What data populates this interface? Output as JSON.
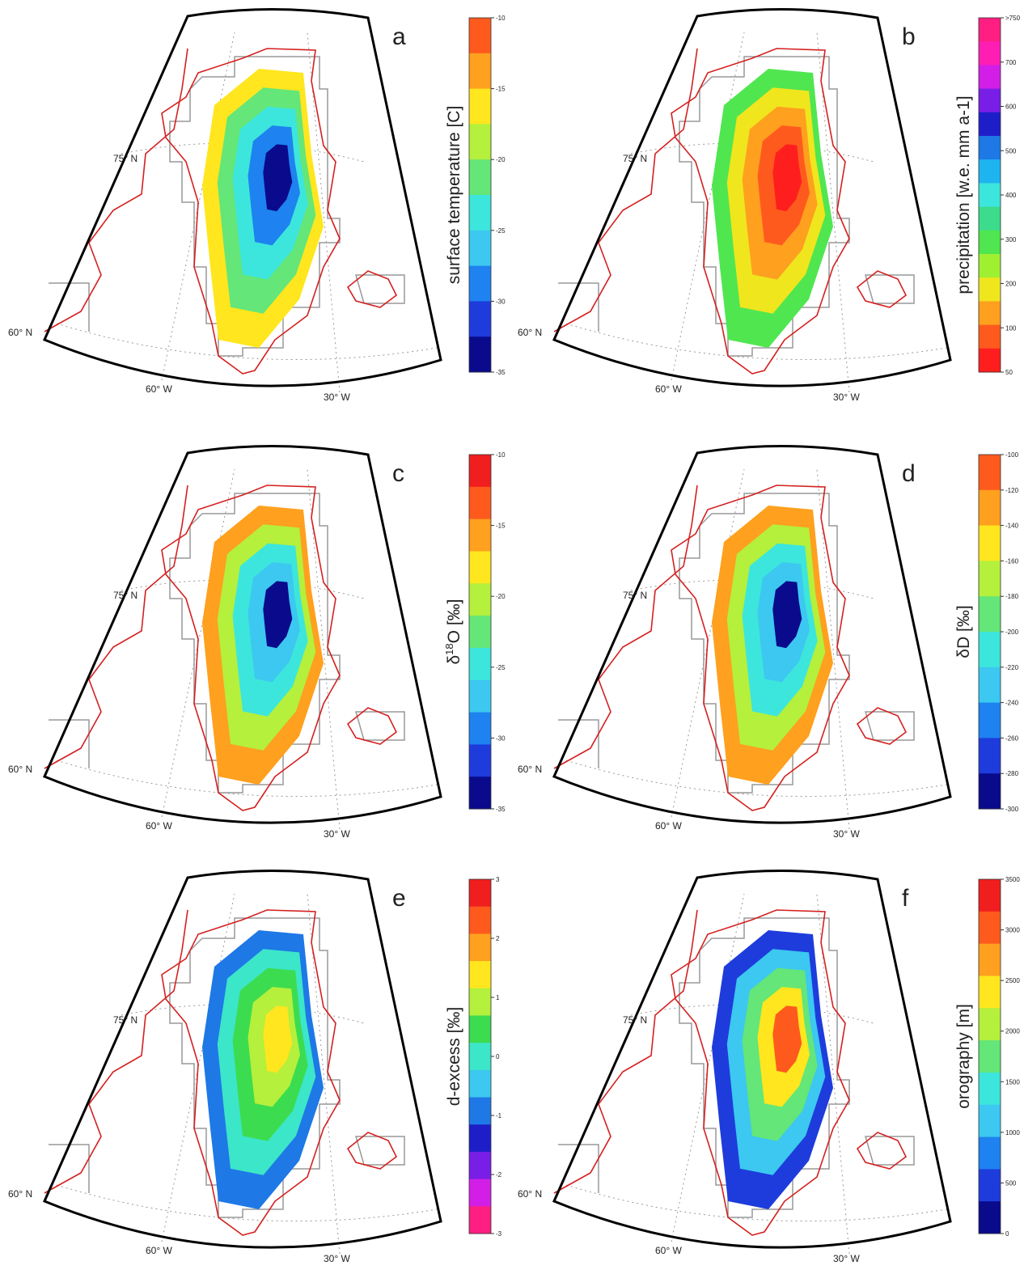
{
  "panels": [
    {
      "letter": "a",
      "colorbar_label": [
        "surface temperature [C]"
      ],
      "ticks": [
        "-10",
        "-15",
        "-20",
        "-25",
        "-30",
        "-35"
      ],
      "colors": [
        "#ff5a1e",
        "#ffa01e",
        "#ffe61e",
        "#b4f03c",
        "#64e678",
        "#3ce6dc",
        "#3cc8f0",
        "#1e82f0",
        "#1e3cdc",
        "#0a0a8c"
      ],
      "lat_labels": [
        "75° N",
        "60° N"
      ],
      "lon_labels": [
        "60° W",
        "30° W"
      ]
    },
    {
      "letter": "b",
      "colorbar_label": [
        "precipitation  [w.e. mm  a-1]"
      ],
      "ticks": [
        ">750",
        "700",
        "600",
        "500",
        "400",
        "300",
        "200",
        "100",
        "50"
      ],
      "colors": [
        "#ff1e82",
        "#ff1eb4",
        "#d21ee6",
        "#781ee6",
        "#1e1ec8",
        "#1e78e6",
        "#1eb4f0",
        "#3ce6dc",
        "#3cdc8c",
        "#50e650",
        "#a0f032",
        "#f0e61e",
        "#ffa01e",
        "#ff5a1e",
        "#ff1e1e"
      ],
      "lat_labels": [
        "75° N",
        "60° N"
      ],
      "lon_labels": [
        "60° W",
        "30° W"
      ]
    },
    {
      "letter": "c",
      "colorbar_label": [
        "δ",
        "18",
        "O [‰]"
      ],
      "ticks": [
        "-10",
        "-15",
        "-20",
        "-25",
        "-30",
        "-35"
      ],
      "colors": [
        "#f01e1e",
        "#ff5a1e",
        "#ffa01e",
        "#ffe61e",
        "#b4f03c",
        "#64e678",
        "#3ce6dc",
        "#3cc8f0",
        "#1e82f0",
        "#1e3cdc",
        "#0a0a8c"
      ],
      "lat_labels": [
        "75° N",
        "60° N"
      ],
      "lon_labels": [
        "60° W",
        "30° W"
      ]
    },
    {
      "letter": "d",
      "colorbar_label": [
        "δD  [‰]"
      ],
      "ticks": [
        "-100",
        "-120",
        "-140",
        "-160",
        "-180",
        "-200",
        "-220",
        "-240",
        "-260",
        "-280",
        "-300"
      ],
      "colors": [
        "#ff5a1e",
        "#ffa01e",
        "#ffe61e",
        "#b4f03c",
        "#64e678",
        "#3ce6dc",
        "#3cc8f0",
        "#1e82f0",
        "#1e3cdc",
        "#0a0a8c"
      ],
      "lat_labels": [
        "75° N",
        "60° N"
      ],
      "lon_labels": [
        "60° W",
        "30° W"
      ]
    },
    {
      "letter": "e",
      "colorbar_label": [
        "d-excess  [‰]"
      ],
      "ticks": [
        "3",
        "2",
        "1",
        "0",
        "-1",
        "-2",
        "-3"
      ],
      "colors": [
        "#f01e1e",
        "#ff5a1e",
        "#ffa01e",
        "#ffe61e",
        "#b4f03c",
        "#3cdc50",
        "#3ce6c8",
        "#3cc8f0",
        "#1e78e6",
        "#1e1ec8",
        "#781ee6",
        "#d21ee6",
        "#ff1e82"
      ],
      "lat_labels": [
        "75° N",
        "60° N"
      ],
      "lon_labels": [
        "60° W",
        "30° W"
      ]
    },
    {
      "letter": "f",
      "colorbar_label": [
        "orography [m]"
      ],
      "ticks": [
        "3500",
        "3000",
        "2500",
        "2000",
        "1500",
        "1000",
        "500",
        "0"
      ],
      "colors": [
        "#f01e1e",
        "#ff5a1e",
        "#ffa01e",
        "#ffe61e",
        "#b4f03c",
        "#64e678",
        "#3ce6dc",
        "#3cc8f0",
        "#1e82f0",
        "#1e3cdc",
        "#0a0a8c"
      ],
      "lat_labels": [
        "75° N",
        "60° N"
      ],
      "lon_labels": [
        "60° W",
        "30° W"
      ]
    }
  ]
}
